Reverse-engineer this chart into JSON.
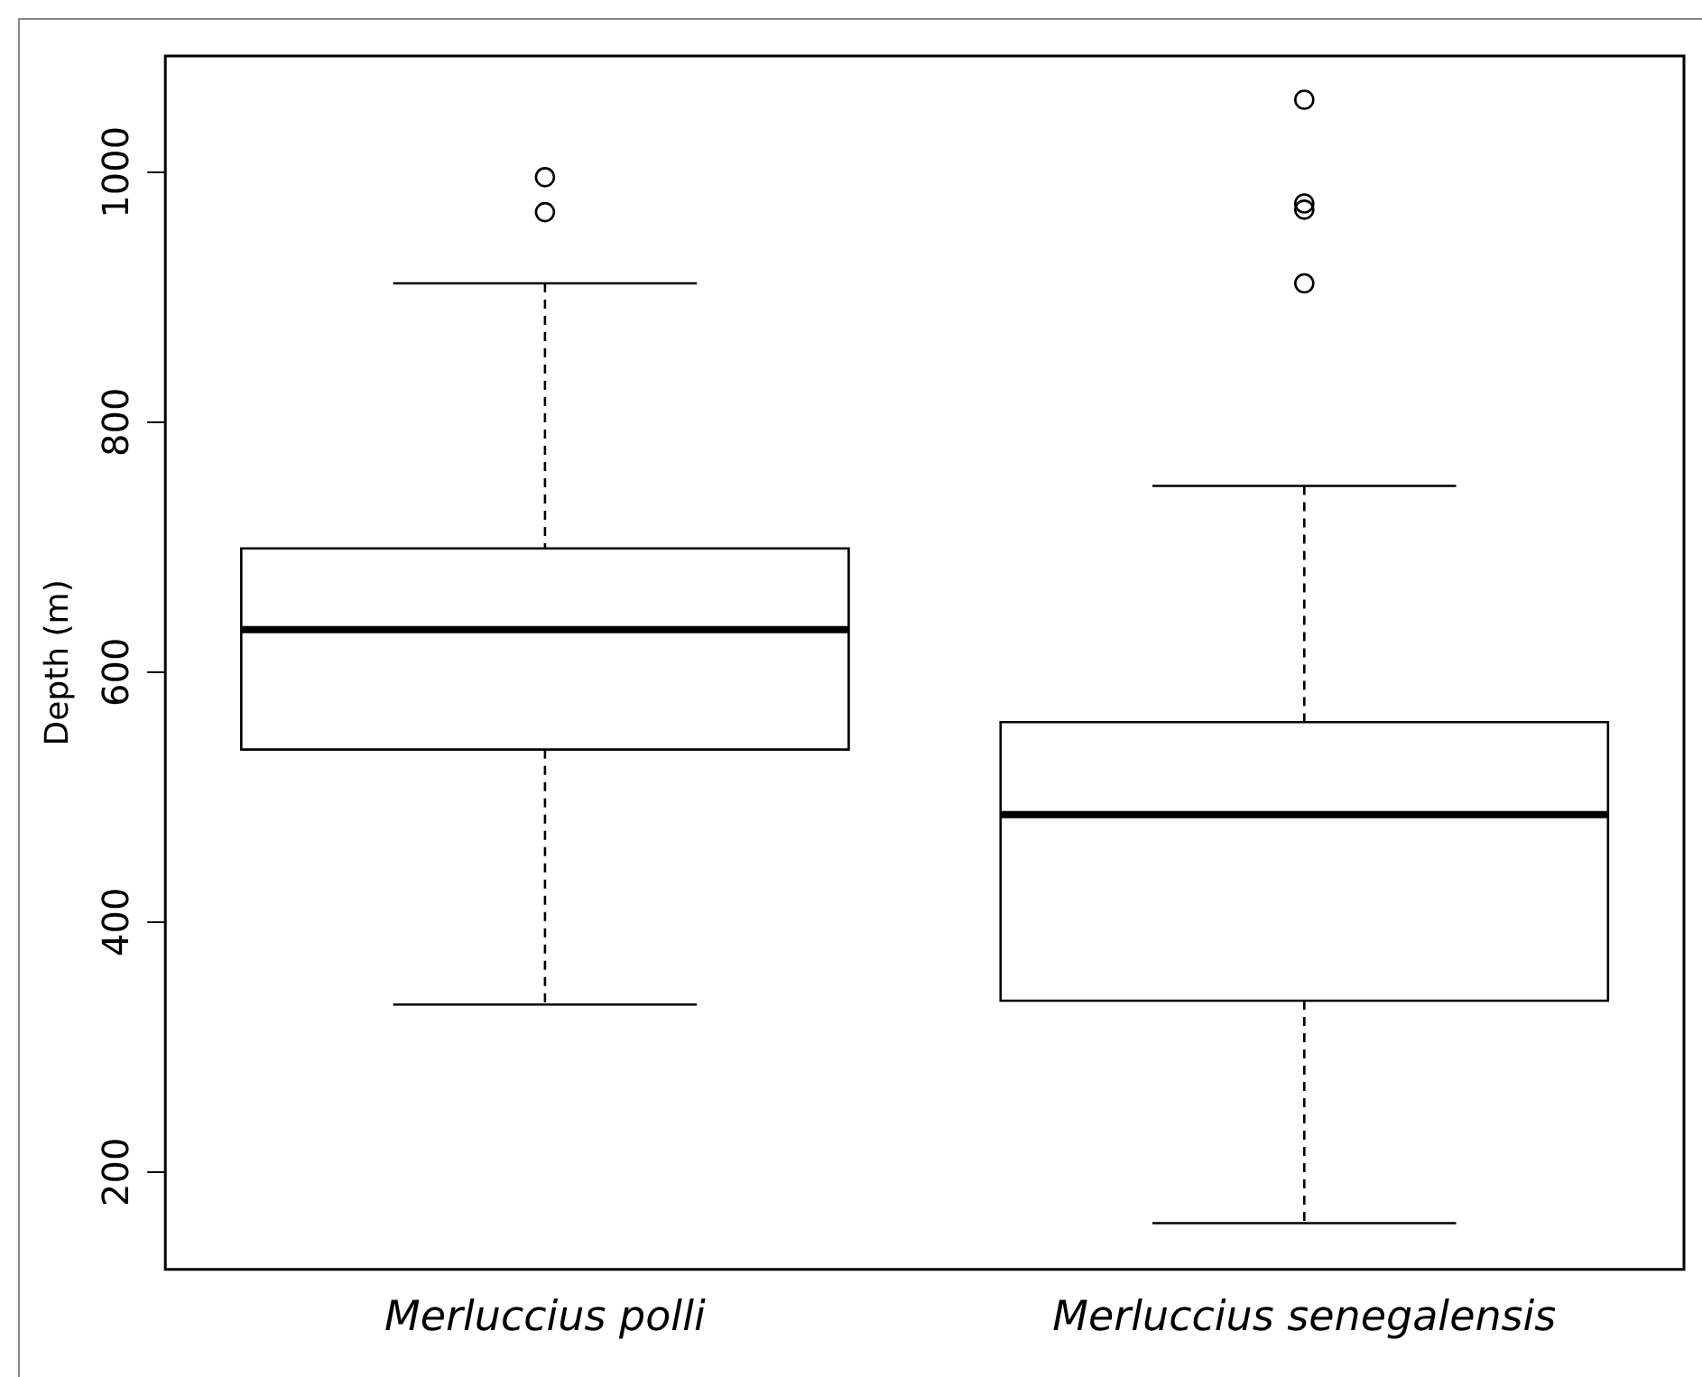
{
  "chart_data": {
    "type": "box",
    "ylabel": "Depth (m)",
    "categories": [
      "Merluccius polli",
      "Merluccius senegalensis"
    ],
    "boxes": [
      {
        "low": 334,
        "q1": 538,
        "median": 634,
        "q3": 699,
        "high": 911,
        "outliers": [
          996,
          968
        ]
      },
      {
        "low": 159,
        "q1": 337,
        "median": 486,
        "q3": 560,
        "high": 749,
        "outliers": [
          1058,
          975,
          970,
          911
        ]
      }
    ],
    "ylim": [
      122,
      1093
    ],
    "yticks": [
      200,
      400,
      600,
      800,
      1000
    ],
    "grid": false,
    "legend": false,
    "marker": "circle"
  }
}
